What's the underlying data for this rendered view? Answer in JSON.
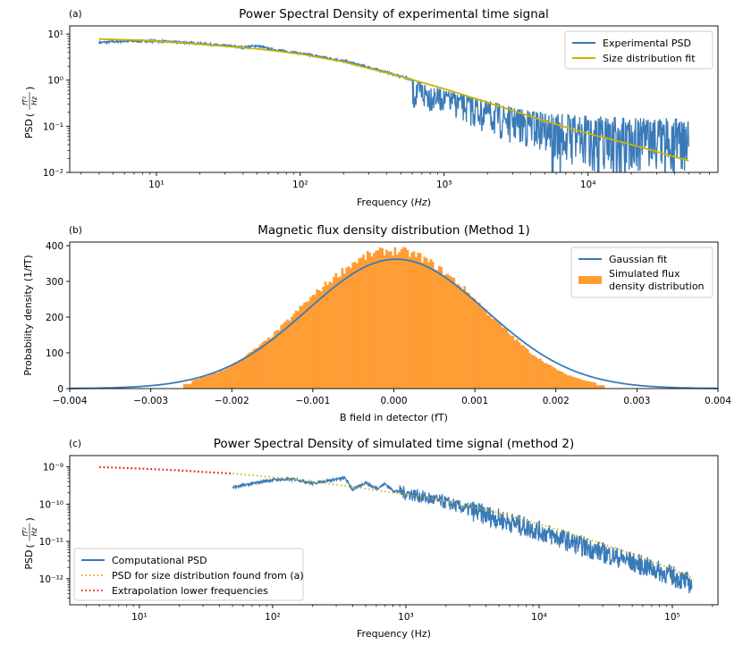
{
  "chart_data": [
    {
      "panel_label": "(a)",
      "type": "line",
      "title": "Power Spectral Density of experimental time signal",
      "xlabel": "Frequency ",
      "xlabel_italic": "Hz",
      "ylabel_prefix": "PSD ",
      "ylabel_num": "fT²",
      "ylabel_den": "Hz",
      "xscale": "log",
      "yscale": "log",
      "xlim": [
        2.5,
        80000
      ],
      "ylim": [
        0.01,
        15
      ],
      "xticks": [
        {
          "v": 10,
          "label": "10¹"
        },
        {
          "v": 100,
          "label": "10²"
        },
        {
          "v": 1000,
          "label": "10³"
        },
        {
          "v": 10000,
          "label": "10⁴"
        }
      ],
      "yticks": [
        {
          "v": 0.01,
          "label": "10⁻²"
        },
        {
          "v": 0.1,
          "label": "10⁻¹"
        },
        {
          "v": 1,
          "label": "10⁰"
        },
        {
          "v": 10,
          "label": "10¹"
        }
      ],
      "legend_position": "top-right",
      "series": [
        {
          "name": "Experimental PSD",
          "color": "#3a7ab8",
          "x": [
            4,
            5,
            6,
            8,
            10,
            15,
            20,
            30,
            40,
            50,
            60,
            80,
            100,
            150,
            200,
            300,
            500,
            700,
            1000,
            1500,
            2000,
            3000,
            5000,
            7000,
            10000,
            15000,
            20000,
            30000,
            50000
          ],
          "y": [
            6.5,
            6.8,
            7.0,
            7.1,
            7.0,
            6.6,
            6.2,
            5.6,
            5.1,
            5.6,
            4.8,
            4.2,
            3.8,
            3.1,
            2.6,
            1.9,
            1.2,
            0.9,
            0.6,
            0.45,
            0.35,
            0.25,
            0.2,
            0.18,
            0.17,
            0.16,
            0.15,
            0.15,
            0.15
          ],
          "noise_floor": {
            "x": [
              1000,
              2000,
              3000,
              5000,
              7000,
              10000,
              20000,
              50000
            ],
            "y": [
              0.2,
              0.06,
              0.04,
              0.025,
              0.015,
              0.01,
              0.01,
              0.01
            ]
          }
        },
        {
          "name": "Size distribution fit",
          "color": "#c8b400",
          "x": [
            4,
            6,
            8,
            10,
            20,
            50,
            100,
            200,
            500,
            1000,
            2000,
            5000,
            10000,
            20000,
            50000
          ],
          "y": [
            7.8,
            7.5,
            7.3,
            7.0,
            6.0,
            4.8,
            3.7,
            2.5,
            1.2,
            0.65,
            0.33,
            0.13,
            0.07,
            0.04,
            0.018
          ]
        }
      ]
    },
    {
      "panel_label": "(b)",
      "type": "bar",
      "title": "Magnetic flux density distribution (Method 1)",
      "xlabel": "B field in detector (fT)",
      "ylabel": "Probability density (1/fT)",
      "xlim": [
        -0.004,
        0.004
      ],
      "ylim": [
        0,
        410
      ],
      "xticks": [
        {
          "v": -0.004,
          "label": "−0.004"
        },
        {
          "v": -0.003,
          "label": "−0.003"
        },
        {
          "v": -0.002,
          "label": "−0.002"
        },
        {
          "v": -0.001,
          "label": "−0.001"
        },
        {
          "v": 0,
          "label": "0.000"
        },
        {
          "v": 0.001,
          "label": "0.001"
        },
        {
          "v": 0.002,
          "label": "0.002"
        },
        {
          "v": 0.003,
          "label": "0.003"
        },
        {
          "v": 0.004,
          "label": "0.004"
        }
      ],
      "yticks": [
        {
          "v": 0,
          "label": "0"
        },
        {
          "v": 100,
          "label": "100"
        },
        {
          "v": 200,
          "label": "200"
        },
        {
          "v": 300,
          "label": "300"
        },
        {
          "v": 400,
          "label": "400"
        }
      ],
      "legend_position": "top-right",
      "series": [
        {
          "name": "Gaussian fit",
          "color": "#3a7ab8",
          "kind": "gaussian",
          "mean": 3e-05,
          "sigma": 0.0011,
          "peak": 362
        },
        {
          "name": "Simulated flux density distribution",
          "legend_lines": [
            "Simulated flux",
            "density distribution"
          ],
          "color": "#ff9d35",
          "kind": "histogram",
          "bins": [
            {
              "x": -0.0025,
              "h": 22
            },
            {
              "x": -0.0023,
              "h": 35
            },
            {
              "x": -0.0021,
              "h": 52
            },
            {
              "x": -0.0019,
              "h": 80
            },
            {
              "x": -0.0017,
              "h": 112
            },
            {
              "x": -0.0015,
              "h": 148
            },
            {
              "x": -0.0013,
              "h": 192
            },
            {
              "x": -0.0011,
              "h": 238
            },
            {
              "x": -0.0009,
              "h": 280
            },
            {
              "x": -0.0007,
              "h": 318
            },
            {
              "x": -0.0005,
              "h": 352
            },
            {
              "x": -0.0003,
              "h": 375
            },
            {
              "x": -0.0001,
              "h": 386
            },
            {
              "x": 0.0001,
              "h": 384
            },
            {
              "x": 0.0003,
              "h": 372
            },
            {
              "x": 0.0005,
              "h": 345
            },
            {
              "x": 0.0007,
              "h": 312
            },
            {
              "x": 0.0009,
              "h": 272
            },
            {
              "x": 0.0011,
              "h": 226
            },
            {
              "x": 0.0013,
              "h": 180
            },
            {
              "x": 0.0015,
              "h": 138
            },
            {
              "x": 0.0017,
              "h": 98
            },
            {
              "x": 0.0019,
              "h": 68
            },
            {
              "x": 0.0021,
              "h": 42
            },
            {
              "x": 0.0023,
              "h": 26
            },
            {
              "x": 0.0025,
              "h": 16
            }
          ]
        }
      ]
    },
    {
      "panel_label": "(c)",
      "type": "line",
      "title": "Power Spectral Density of simulated time signal (method 2)",
      "xlabel": "Frequency (Hz)",
      "ylabel_prefix": "PSD ",
      "ylabel_num": "fT²",
      "ylabel_den": "Hz",
      "xscale": "log",
      "yscale": "log",
      "xlim": [
        3,
        220000
      ],
      "ylim": [
        2e-13,
        2e-09
      ],
      "xticks": [
        {
          "v": 10,
          "label": "10¹"
        },
        {
          "v": 100,
          "label": "10²"
        },
        {
          "v": 1000,
          "label": "10³"
        },
        {
          "v": 10000,
          "label": "10⁴"
        },
        {
          "v": 100000,
          "label": "10⁵"
        }
      ],
      "yticks": [
        {
          "v": 1e-12,
          "label": "10⁻¹²"
        },
        {
          "v": 1e-11,
          "label": "10⁻¹¹"
        },
        {
          "v": 1e-10,
          "label": "10⁻¹⁰"
        },
        {
          "v": 1e-09,
          "label": "10⁻⁹"
        }
      ],
      "legend_position": "bottom-left",
      "series": [
        {
          "name": "Computational PSD",
          "color": "#3a7ab8",
          "x": [
            50,
            100,
            150,
            200,
            250,
            350,
            400,
            500,
            600,
            700,
            800,
            1000,
            1500,
            2000,
            3000,
            5000,
            7000,
            10000,
            20000,
            30000,
            50000,
            100000,
            140000
          ],
          "y": [
            2.8e-10,
            4.5e-10,
            4.6e-10,
            3.6e-10,
            4.2e-10,
            5e-10,
            2.4e-10,
            3.8e-10,
            2.6e-10,
            3.5e-10,
            2.3e-10,
            2e-10,
            1.4e-10,
            1.1e-10,
            7e-11,
            4e-11,
            2.8e-11,
            1.9e-11,
            8e-12,
            5e-12,
            2.8e-12,
            1.2e-12,
            7e-13
          ]
        },
        {
          "name": "PSD for size distribution found from (a)",
          "color": "#d6b400",
          "style": "dotted",
          "x": [
            50,
            100,
            200,
            500,
            1000,
            2000,
            5000,
            10000,
            20000,
            50000,
            100000,
            140000
          ],
          "y": [
            6.6e-10,
            5.3e-10,
            4e-10,
            2.6e-10,
            1.8e-10,
            1.2e-10,
            5.8e-11,
            2.9e-11,
            1.4e-11,
            4.6e-12,
            1.8e-12,
            1.1e-12
          ]
        },
        {
          "name": "Extrapolation lower frequencies",
          "color": "#e8282b",
          "style": "dotted",
          "x": [
            5,
            10,
            20,
            30,
            50
          ],
          "y": [
            9.8e-10,
            9e-10,
            8e-10,
            7.3e-10,
            6.6e-10
          ]
        }
      ]
    }
  ]
}
